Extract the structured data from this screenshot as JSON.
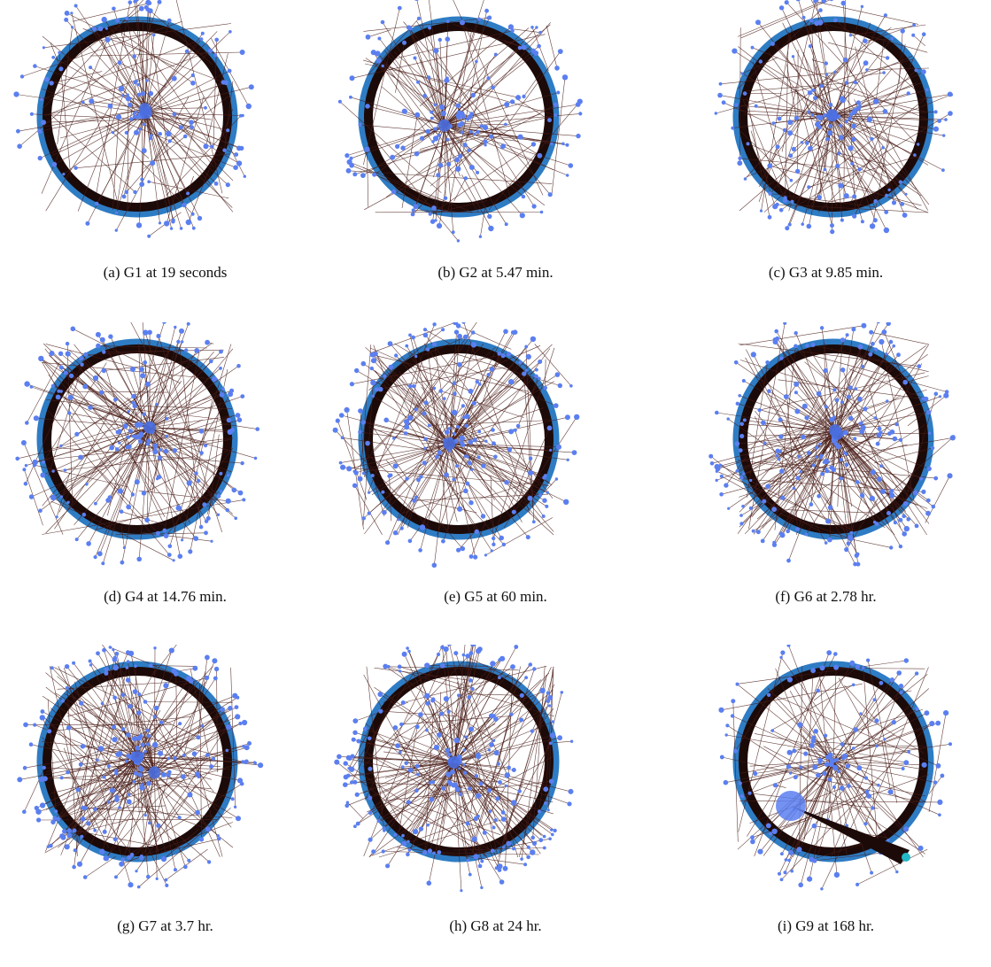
{
  "colors": {
    "ring": "#2e7cc4",
    "ring_inner": "#1c0a08",
    "edge": "#4a1f1a",
    "node": "#4b6fe0",
    "node_fill": "#5b7ff0",
    "hub_cyan": "#22b8c8"
  },
  "panels": [
    {
      "caption": "(a) G1 at 19 seconds",
      "graph": "G1",
      "density": 0.35,
      "center_hubs": 2,
      "big_hub": false,
      "wedge": false
    },
    {
      "caption": "(b) G2 at 5.47 min.",
      "graph": "G2",
      "density": 0.45,
      "center_hubs": 1,
      "big_hub": false,
      "wedge": false
    },
    {
      "caption": "(c) G3 at 9.85 min.",
      "graph": "G3",
      "density": 0.5,
      "center_hubs": 1,
      "big_hub": false,
      "wedge": false
    },
    {
      "caption": "(d) G4 at 14.76 min.",
      "graph": "G4",
      "density": 0.6,
      "center_hubs": 1,
      "big_hub": false,
      "wedge": false
    },
    {
      "caption": "(e) G5 at 60 min.",
      "graph": "G5",
      "density": 0.7,
      "center_hubs": 1,
      "big_hub": false,
      "wedge": false
    },
    {
      "caption": "(f) G6 at 2.78 hr.",
      "graph": "G6",
      "density": 0.8,
      "center_hubs": 2,
      "big_hub": false,
      "wedge": false
    },
    {
      "caption": "(g) G7 at 3.7 hr.",
      "graph": "G7",
      "density": 0.85,
      "center_hubs": 2,
      "big_hub": false,
      "wedge": false
    },
    {
      "caption": "(h) G8 at 24 hr.",
      "graph": "G8",
      "density": 0.9,
      "center_hubs": 1,
      "big_hub": false,
      "wedge": false
    },
    {
      "caption": "(i) G9 at 168 hr.",
      "graph": "G9",
      "density": 0.3,
      "center_hubs": 0,
      "big_hub": true,
      "wedge": true
    }
  ]
}
